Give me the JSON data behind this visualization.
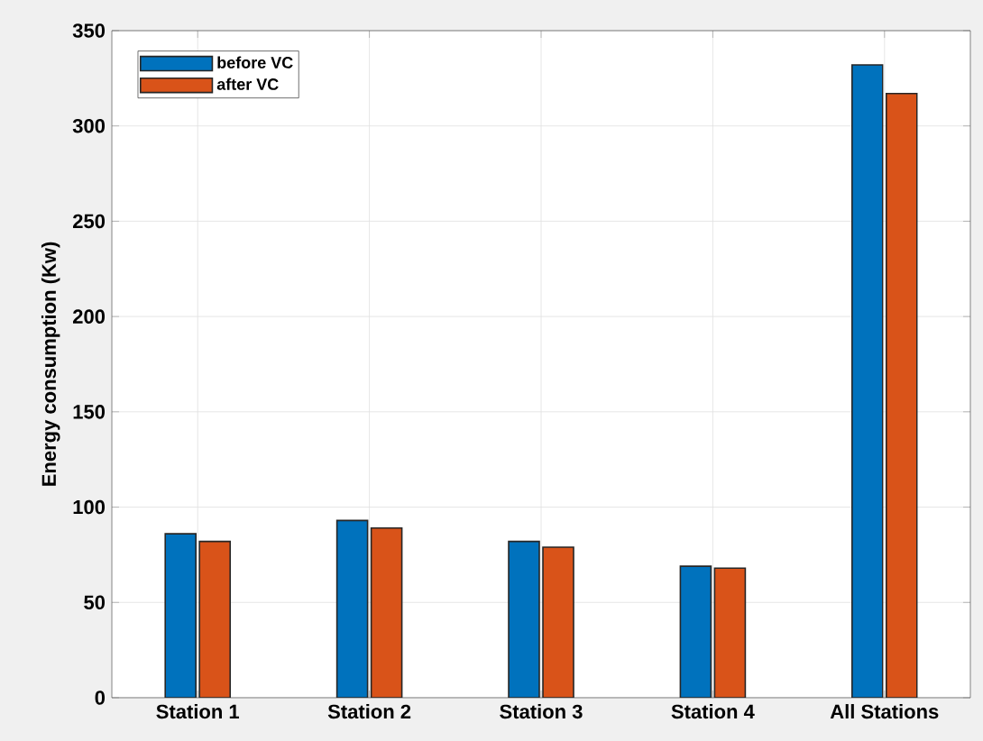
{
  "chart_data": {
    "type": "bar",
    "ylabel": "Energy consumption (Kw)",
    "categories": [
      "Station 1",
      "Station 2",
      "Station 3",
      "Station 4",
      "All Stations"
    ],
    "series": [
      {
        "name": "before VC",
        "color": "#0072bd",
        "values": [
          86,
          93,
          82,
          69,
          332
        ]
      },
      {
        "name": "after VC",
        "color": "#d95319",
        "values": [
          82,
          89,
          79,
          68,
          317
        ]
      }
    ],
    "ylim": [
      0,
      350
    ],
    "yticks": [
      0,
      50,
      100,
      150,
      200,
      250,
      300,
      350
    ],
    "grid": true,
    "legend": "top left"
  }
}
